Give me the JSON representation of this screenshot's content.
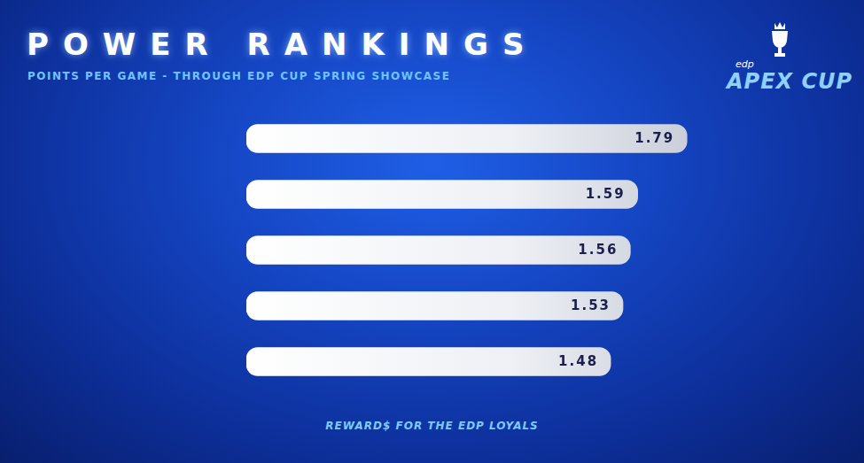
{
  "chart_data": {
    "type": "bar",
    "orientation": "horizontal",
    "title": "POWER RANKINGS",
    "subtitle": "POINTS PER GAME - THROUGH EDP CUP SPRING SHOWCASE",
    "logo": {
      "brand": "edp",
      "name": "APEX CUP"
    },
    "annotations": [
      "REWARD$ FOR THE EDP LOYALS"
    ],
    "categories": [
      null,
      null,
      null,
      null,
      null
    ],
    "values": [
      1.79,
      1.59,
      1.56,
      1.53,
      1.48
    ],
    "color": "#ffffff",
    "xlim": [
      0,
      1.8
    ],
    "xticks": [
      0,
      1.8
    ],
    "grid": false,
    "data_labels": true,
    "tick_labels": false
  }
}
